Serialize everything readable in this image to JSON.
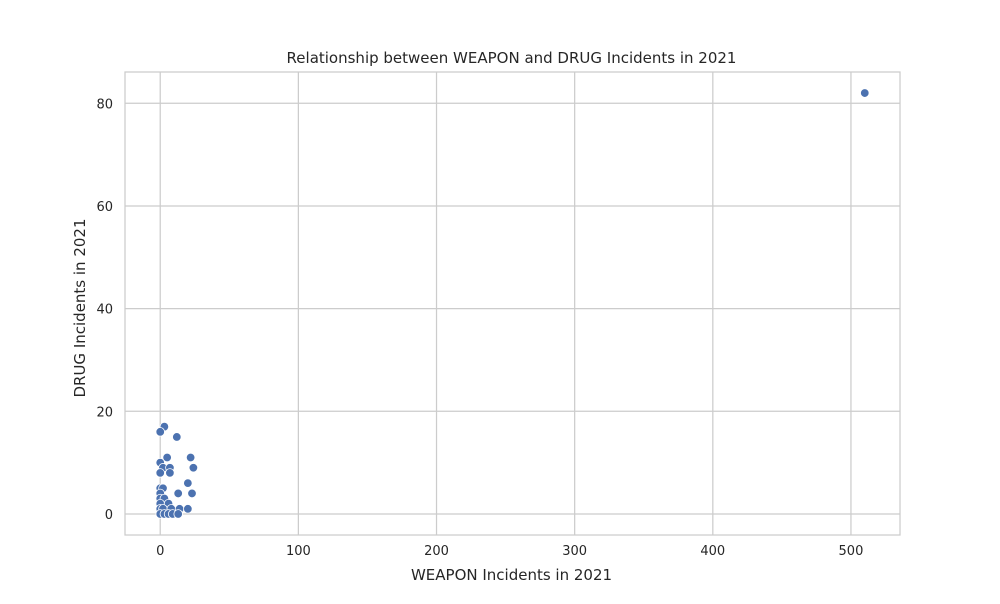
{
  "chart_data": {
    "type": "scatter",
    "title": "Relationship between WEAPON and DRUG Incidents in 2021",
    "xlabel": "WEAPON Incidents in 2021",
    "ylabel": "DRUG Incidents in 2021",
    "xlim": [
      -25.5,
      535.5
    ],
    "ylim": [
      -4.1,
      86.1
    ],
    "xticks": [
      0,
      100,
      200,
      300,
      400,
      500
    ],
    "yticks": [
      0,
      20,
      40,
      60,
      80
    ],
    "grid": true,
    "legend": "none",
    "marker_color": "#4c72b0",
    "points": [
      {
        "x": 510,
        "y": 82
      },
      {
        "x": 3,
        "y": 17
      },
      {
        "x": 0,
        "y": 16
      },
      {
        "x": 12,
        "y": 15
      },
      {
        "x": 5,
        "y": 11
      },
      {
        "x": 22,
        "y": 11
      },
      {
        "x": 0,
        "y": 10
      },
      {
        "x": 2,
        "y": 9
      },
      {
        "x": 7,
        "y": 9
      },
      {
        "x": 24,
        "y": 9
      },
      {
        "x": 0,
        "y": 8
      },
      {
        "x": 7,
        "y": 8
      },
      {
        "x": 20,
        "y": 6
      },
      {
        "x": 0,
        "y": 5
      },
      {
        "x": 2,
        "y": 5
      },
      {
        "x": 0,
        "y": 4
      },
      {
        "x": 13,
        "y": 4
      },
      {
        "x": 23,
        "y": 4
      },
      {
        "x": 0,
        "y": 3
      },
      {
        "x": 3,
        "y": 3
      },
      {
        "x": 0,
        "y": 2
      },
      {
        "x": 6,
        "y": 2
      },
      {
        "x": 0,
        "y": 1
      },
      {
        "x": 2,
        "y": 1
      },
      {
        "x": 8,
        "y": 1
      },
      {
        "x": 14,
        "y": 1
      },
      {
        "x": 20,
        "y": 1
      },
      {
        "x": 0,
        "y": 0
      },
      {
        "x": 3,
        "y": 0
      },
      {
        "x": 6,
        "y": 0
      },
      {
        "x": 9,
        "y": 0
      },
      {
        "x": 13,
        "y": 0
      }
    ]
  }
}
